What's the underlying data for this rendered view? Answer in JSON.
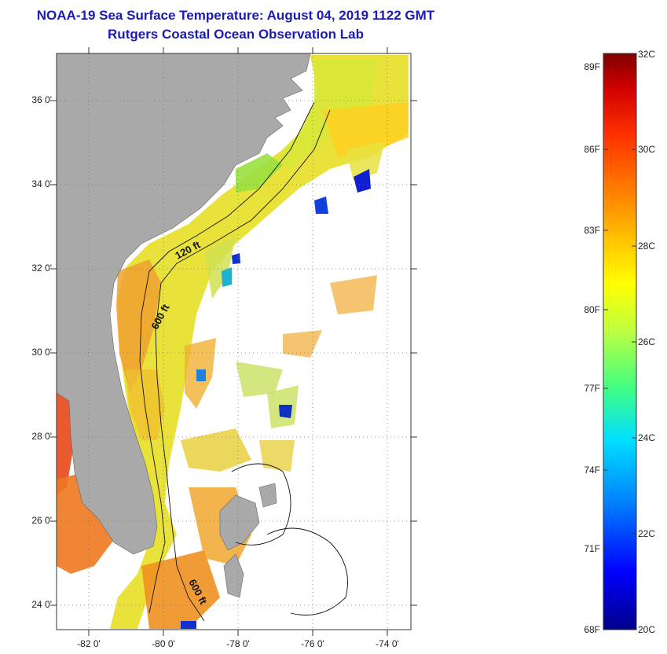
{
  "title": {
    "line1": "NOAA-19 Sea Surface Temperature:  August 04, 2019 1122 GMT",
    "line2": "Rutgers Coastal Ocean Observation Lab"
  },
  "map": {
    "lat_labels": [
      {
        "id": "36",
        "text": "36 0'"
      },
      {
        "id": "34",
        "text": "34 0'"
      },
      {
        "id": "32",
        "text": "32 0'"
      },
      {
        "id": "30",
        "text": "30 0'"
      },
      {
        "id": "28",
        "text": "28 0'"
      },
      {
        "id": "26",
        "text": "26 0'"
      },
      {
        "id": "24",
        "text": "24 0'"
      }
    ],
    "lon_labels": [
      {
        "id": "82",
        "text": "-82 0'"
      },
      {
        "id": "80",
        "text": "-80 0'"
      },
      {
        "id": "78",
        "text": "-78 0'"
      },
      {
        "id": "76",
        "text": "-76 0'"
      },
      {
        "id": "74",
        "text": "-74 0'"
      }
    ],
    "contour_labels": {
      "c120": "120 ft",
      "c600a": "600 ft",
      "c600b": "600 ft"
    },
    "colors": {
      "land": "#a9a9a9",
      "ocean_nodata": "#ffffff",
      "grid": "#555555"
    }
  },
  "colorbar": {
    "fahrenheit": [
      {
        "id": "89",
        "text": "89F"
      },
      {
        "id": "86",
        "text": "86F"
      },
      {
        "id": "83",
        "text": "83F"
      },
      {
        "id": "80",
        "text": "80F"
      },
      {
        "id": "77",
        "text": "77F"
      },
      {
        "id": "74",
        "text": "74F"
      },
      {
        "id": "71",
        "text": "71F"
      },
      {
        "id": "68",
        "text": "68F"
      }
    ],
    "celsius": [
      {
        "id": "32",
        "text": "32C"
      },
      {
        "id": "30",
        "text": "30C"
      },
      {
        "id": "28",
        "text": "28C"
      },
      {
        "id": "26",
        "text": "26C"
      },
      {
        "id": "24",
        "text": "24C"
      },
      {
        "id": "22",
        "text": "22C"
      },
      {
        "id": "20",
        "text": "20C"
      }
    ],
    "range_c": [
      20,
      32
    ],
    "gradient_stops": [
      "#00008b",
      "#0000ff",
      "#0080ff",
      "#00e0ff",
      "#40ff80",
      "#c0ff40",
      "#ffff00",
      "#ffc000",
      "#ff8000",
      "#ff3000",
      "#d00000",
      "#800000"
    ]
  }
}
